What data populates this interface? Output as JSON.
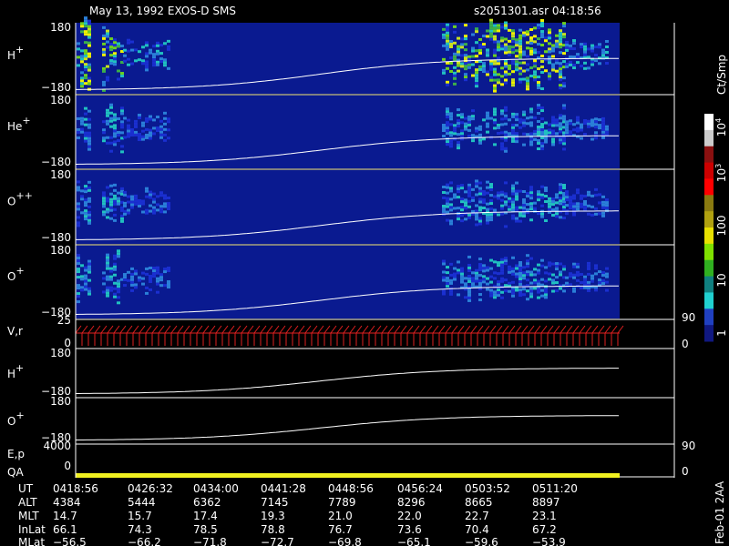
{
  "header": {
    "title": "May 13, 1992   EXOS-D SMS",
    "file": "s2051301.asr  04:18:56"
  },
  "panels": [
    {
      "label": "H",
      "sup": "+",
      "ticks": [
        "180",
        "−180"
      ]
    },
    {
      "label": "He",
      "sup": "+",
      "ticks": [
        "180",
        "−180"
      ]
    },
    {
      "label": "O",
      "sup": "++",
      "ticks": [
        "180",
        "−180"
      ]
    },
    {
      "label": "O",
      "sup": "+",
      "ticks": [
        "180",
        "−180"
      ]
    }
  ],
  "vr": {
    "label": "V,r",
    "left_ticks": [
      "25",
      "0"
    ],
    "right_ticks": [
      "90",
      "0"
    ]
  },
  "line_panels": [
    {
      "label": "H",
      "sup": "+",
      "ticks": [
        "180",
        "−180"
      ]
    },
    {
      "label": "O",
      "sup": "+",
      "ticks": [
        "180",
        "−180"
      ]
    }
  ],
  "ep": {
    "label": "E,p",
    "label2": "QA",
    "left_ticks": [
      "4000",
      "0"
    ],
    "right_ticks": [
      "90",
      "0"
    ]
  },
  "colorbar": {
    "unit": "Ct/Smp",
    "ticks": [
      {
        "base": "10",
        "exp": "4"
      },
      {
        "base": "10",
        "exp": "3"
      },
      {
        "base": "100"
      },
      {
        "base": "10"
      },
      {
        "base": "1"
      }
    ]
  },
  "table": {
    "rows": [
      [
        "UT",
        "0418:56",
        "0426:32",
        "0434:00",
        "0441:28",
        "0448:56",
        "0456:24",
        "0503:52",
        "0511:20"
      ],
      [
        "ALT",
        "4384",
        "5444",
        "6362",
        "7145",
        "7789",
        "8296",
        "8665",
        "8897"
      ],
      [
        "MLT",
        "14.7",
        "15.7",
        "17.4",
        "19.3",
        "21.0",
        "22.0",
        "22.7",
        "23.1"
      ],
      [
        "InLat",
        "66.1",
        "74.3",
        "78.5",
        "78.8",
        "76.7",
        "73.6",
        "70.4",
        "67.2"
      ],
      [
        "MLat",
        "−56.5",
        "−66.2",
        "−71.8",
        "−72.7",
        "−69.8",
        "−65.1",
        "−59.6",
        "−53.9"
      ]
    ]
  },
  "footnote": "Feb-01 2AA"
}
